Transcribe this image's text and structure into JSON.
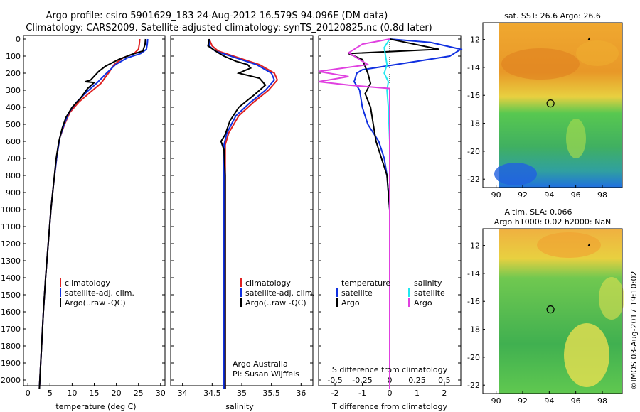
{
  "header": {
    "line1": "Argo profile: csiro 5901629_183 24-Aug-2012 16.579S 94.096E (DM data)",
    "line2": "Climatology: CARS2009. Satellite-adjusted climatology: synTS_20120825.nc (0.8d later)"
  },
  "colors": {
    "climatology": "#e02020",
    "satellite": "#1030e0",
    "argo": "#000000",
    "sal_satellite": "#20e8f0",
    "sal_argo": "#e040e0"
  },
  "chart_data": [
    {
      "id": "temperature",
      "type": "line",
      "xlabel": "temperature (deg C)",
      "ylabel": "",
      "xlim": [
        -1,
        31
      ],
      "ylim": [
        2070,
        0
      ],
      "xticks": [
        0,
        5,
        10,
        15,
        20,
        25,
        30
      ],
      "yticks": [
        0,
        100,
        200,
        300,
        400,
        500,
        600,
        700,
        800,
        900,
        1000,
        1100,
        1200,
        1300,
        1400,
        1500,
        1600,
        1700,
        1800,
        1900,
        2000
      ],
      "legend": [
        "climatology",
        "satellite-adj. clim.",
        "Argo(..raw -QC)"
      ],
      "series": [
        {
          "name": "climatology",
          "color": "#e02020",
          "points": [
            [
              25.3,
              0
            ],
            [
              25.2,
              30
            ],
            [
              25.0,
              60
            ],
            [
              24.0,
              85
            ],
            [
              21.5,
              110
            ],
            [
              19.5,
              150
            ],
            [
              18.2,
              200
            ],
            [
              16.5,
              260
            ],
            [
              14.2,
              310
            ],
            [
              11.5,
              370
            ],
            [
              9.5,
              430
            ],
            [
              8.3,
              500
            ],
            [
              7.2,
              580
            ],
            [
              6.5,
              700
            ],
            [
              5.8,
              850
            ],
            [
              5.2,
              1000
            ],
            [
              4.6,
              1200
            ],
            [
              4.0,
              1400
            ],
            [
              3.5,
              1600
            ],
            [
              3.1,
              1800
            ],
            [
              2.8,
              1950
            ],
            [
              2.6,
              2050
            ]
          ]
        },
        {
          "name": "satellite-adj. clim.",
          "color": "#1030e0",
          "points": [
            [
              27.1,
              0
            ],
            [
              27.0,
              30
            ],
            [
              26.8,
              60
            ],
            [
              25.5,
              85
            ],
            [
              22.5,
              110
            ],
            [
              19.8,
              150
            ],
            [
              17.8,
              200
            ],
            [
              15.5,
              260
            ],
            [
              13.3,
              310
            ],
            [
              11.0,
              370
            ],
            [
              9.3,
              430
            ],
            [
              8.2,
              500
            ],
            [
              7.2,
              580
            ],
            [
              6.5,
              700
            ],
            [
              5.8,
              850
            ],
            [
              5.2,
              1000
            ],
            [
              4.6,
              1200
            ],
            [
              4.0,
              1400
            ],
            [
              3.5,
              1600
            ],
            [
              3.1,
              1800
            ],
            [
              2.8,
              1950
            ],
            [
              2.6,
              2050
            ]
          ]
        },
        {
          "name": "Argo(..raw -QC)",
          "color": "#000000",
          "points": [
            [
              26.6,
              0
            ],
            [
              26.5,
              30
            ],
            [
              26.0,
              70
            ],
            [
              23.5,
              90
            ],
            [
              20.5,
              120
            ],
            [
              17.5,
              160
            ],
            [
              16.0,
              190
            ],
            [
              14.2,
              240
            ],
            [
              13.0,
              250
            ],
            [
              15.0,
              255
            ],
            [
              13.5,
              290
            ],
            [
              11.8,
              350
            ],
            [
              10.0,
              400
            ],
            [
              8.6,
              460
            ],
            [
              7.8,
              520
            ],
            [
              7.0,
              600
            ],
            [
              6.4,
              700
            ],
            [
              5.8,
              850
            ],
            [
              5.2,
              1000
            ],
            [
              4.6,
              1200
            ],
            [
              4.0,
              1400
            ],
            [
              3.5,
              1600
            ],
            [
              3.1,
              1800
            ],
            [
              2.8,
              1950
            ],
            [
              2.6,
              2050
            ]
          ]
        }
      ]
    },
    {
      "id": "salinity",
      "type": "line",
      "xlabel": "salinity",
      "ylabel": "",
      "xlim": [
        33.8,
        36.2
      ],
      "ylim": [
        2070,
        0
      ],
      "xticks": [
        34,
        34.5,
        35,
        35.5,
        36
      ],
      "legend": [
        "climatology",
        "satellite-adj. clim.",
        "Argo(..raw -QC)"
      ],
      "annotation": [
        "Argo Australia",
        "PI: Susan Wijffels"
      ],
      "series": [
        {
          "name": "climatology",
          "color": "#e02020",
          "points": [
            [
              34.45,
              0
            ],
            [
              34.5,
              40
            ],
            [
              34.6,
              70
            ],
            [
              34.95,
              110
            ],
            [
              35.3,
              150
            ],
            [
              35.55,
              200
            ],
            [
              35.6,
              240
            ],
            [
              35.45,
              300
            ],
            [
              35.2,
              370
            ],
            [
              34.95,
              450
            ],
            [
              34.78,
              550
            ],
            [
              34.72,
              620
            ],
            [
              34.72,
              700
            ],
            [
              34.72,
              900
            ],
            [
              34.72,
              1200
            ],
            [
              34.72,
              1600
            ],
            [
              34.72,
              2050
            ]
          ]
        },
        {
          "name": "satellite-adj. clim.",
          "color": "#1030e0",
          "points": [
            [
              34.45,
              0
            ],
            [
              34.45,
              40
            ],
            [
              34.55,
              70
            ],
            [
              34.9,
              110
            ],
            [
              35.25,
              150
            ],
            [
              35.5,
              200
            ],
            [
              35.55,
              240
            ],
            [
              35.4,
              300
            ],
            [
              35.15,
              370
            ],
            [
              34.9,
              450
            ],
            [
              34.75,
              550
            ],
            [
              34.7,
              620
            ],
            [
              34.7,
              700
            ],
            [
              34.7,
              900
            ],
            [
              34.7,
              1200
            ],
            [
              34.7,
              1600
            ],
            [
              34.7,
              2050
            ]
          ]
        },
        {
          "name": "Argo(..raw -QC)",
          "color": "#000000",
          "points": [
            [
              34.45,
              0
            ],
            [
              34.43,
              40
            ],
            [
              34.6,
              80
            ],
            [
              34.7,
              100
            ],
            [
              34.9,
              130
            ],
            [
              35.1,
              150
            ],
            [
              35.15,
              170
            ],
            [
              34.95,
              200
            ],
            [
              35.3,
              230
            ],
            [
              35.4,
              270
            ],
            [
              35.2,
              330
            ],
            [
              34.95,
              400
            ],
            [
              34.8,
              480
            ],
            [
              34.72,
              560
            ],
            [
              34.65,
              600
            ],
            [
              34.7,
              650
            ],
            [
              34.72,
              800
            ],
            [
              34.72,
              1200
            ],
            [
              34.72,
              1600
            ],
            [
              34.72,
              2050
            ]
          ]
        }
      ]
    },
    {
      "id": "difference",
      "type": "line",
      "xlabel": "T difference from climatology",
      "toplabel": "S difference from climatology",
      "xlim": [
        -2.6,
        2.6
      ],
      "ylim": [
        2070,
        0
      ],
      "xticks": [
        -2,
        -1,
        0,
        1,
        2
      ],
      "sticks": [
        -0.5,
        -0.25,
        0,
        0.25,
        0.5
      ],
      "legend_temperature": [
        "temperature",
        "satellite",
        "Argo"
      ],
      "legend_salinity": [
        "salinity",
        "satellite",
        "Argo"
      ],
      "series": [
        {
          "name": "satellite",
          "group": "temperature",
          "color": "#1030e0",
          "points": [
            [
              0,
              0
            ],
            [
              1.5,
              20
            ],
            [
              2.7,
              60
            ],
            [
              2.2,
              100
            ],
            [
              1.0,
              130
            ],
            [
              -1.0,
              180
            ],
            [
              -1.2,
              200
            ],
            [
              -1.3,
              250
            ],
            [
              -1.1,
              300
            ],
            [
              -1.0,
              400
            ],
            [
              -0.8,
              500
            ],
            [
              -0.4,
              600
            ],
            [
              -0.2,
              700
            ],
            [
              -0.1,
              800
            ],
            [
              0,
              1000
            ],
            [
              0,
              1200
            ],
            [
              0,
              1500
            ],
            [
              0,
              1800
            ],
            [
              0,
              2050
            ]
          ]
        },
        {
          "name": "Argo",
          "group": "temperature",
          "color": "#000000",
          "points": [
            [
              0,
              0
            ],
            [
              0.6,
              20
            ],
            [
              1.8,
              60
            ],
            [
              -1.5,
              85
            ],
            [
              -1.0,
              120
            ],
            [
              -0.8,
              200
            ],
            [
              -0.7,
              260
            ],
            [
              -0.9,
              320
            ],
            [
              -0.7,
              400
            ],
            [
              -0.6,
              500
            ],
            [
              -0.5,
              600
            ],
            [
              -0.3,
              700
            ],
            [
              -0.1,
              800
            ],
            [
              0,
              1000
            ],
            [
              0,
              1200
            ],
            [
              0,
              1500
            ],
            [
              0,
              1800
            ],
            [
              0,
              2050
            ]
          ]
        },
        {
          "name": "satellite",
          "group": "salinity",
          "color": "#20e8f0",
          "points": [
            [
              0,
              0
            ],
            [
              -0.2,
              50
            ],
            [
              -0.15,
              100
            ],
            [
              -0.1,
              150
            ],
            [
              -0.2,
              200
            ],
            [
              -0.05,
              250
            ],
            [
              -0.1,
              300
            ],
            [
              -0.05,
              400
            ],
            [
              0,
              600
            ],
            [
              0,
              800
            ],
            [
              0,
              1200
            ],
            [
              0,
              1600
            ],
            [
              0,
              2050
            ]
          ]
        },
        {
          "name": "Argo",
          "group": "salinity",
          "color": "#e040e0",
          "points": [
            [
              0,
              0
            ],
            [
              -1.0,
              30
            ],
            [
              -1.5,
              80
            ],
            [
              -0.8,
              150
            ],
            [
              -3.0,
              190
            ],
            [
              -1.5,
              220
            ],
            [
              -3.0,
              250
            ],
            [
              -1.5,
              270
            ],
            [
              0,
              290
            ],
            [
              0,
              400
            ],
            [
              0,
              600
            ],
            [
              0,
              1000
            ],
            [
              0,
              1500
            ],
            [
              0,
              2050
            ]
          ]
        }
      ]
    },
    {
      "id": "sst_map",
      "type": "heatmap",
      "title": "sat. SST: 26.6  Argo: 26.6",
      "xticks": [
        90,
        92,
        94,
        96,
        98
      ],
      "yticks": [
        -12,
        -14,
        -16,
        -18,
        -20,
        -22
      ],
      "xlim": [
        89,
        99.5
      ],
      "ylim": [
        -22.6,
        -10.8
      ],
      "argo_position": [
        94.096,
        -16.579
      ]
    },
    {
      "id": "sla_map",
      "type": "heatmap",
      "title_line1": "Altim. SLA: 0.066",
      "title_line2": "Argo h1000: 0.02 h2000: NaN",
      "xticks": [
        90,
        92,
        94,
        96,
        98
      ],
      "yticks": [
        -12,
        -14,
        -16,
        -18,
        -20,
        -22
      ],
      "xlim": [
        89,
        99.5
      ],
      "ylim": [
        -22.6,
        -10.8
      ],
      "argo_position": [
        94.096,
        -16.579
      ]
    }
  ],
  "credit": "©IMOS 03-Aug-2017 19:10:02"
}
